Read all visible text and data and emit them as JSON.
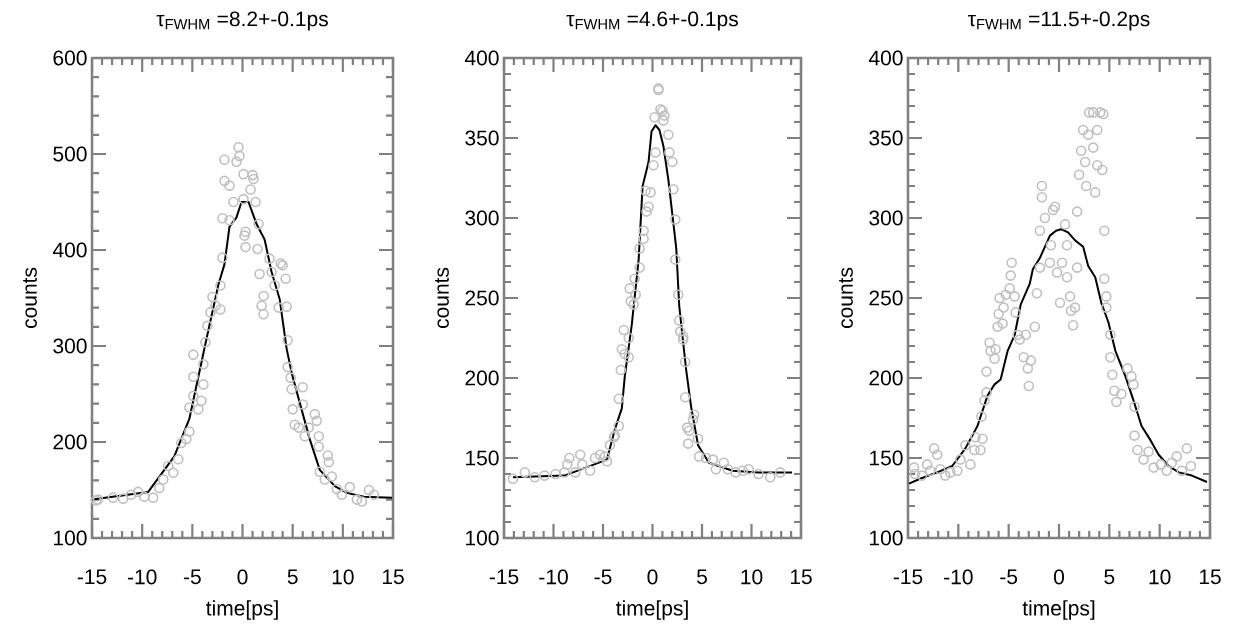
{
  "chart_data": [
    {
      "type": "scatter",
      "title": "τ$_{FWHM}$ =8.2+-0.1ps",
      "xlabel": "time[ps]",
      "ylabel": "counts",
      "xlim": [
        -15,
        15
      ],
      "ylim": [
        100,
        600
      ],
      "xticks": [
        -15,
        -10,
        -5,
        0,
        5,
        10,
        15
      ],
      "yticks": [
        100,
        200,
        300,
        400,
        500,
        600
      ],
      "series": [
        {
          "marker": "circle",
          "color": "#c0c0c0",
          "x": [
            -14.6,
            -14.4,
            -12.9,
            -11.9,
            -11.1,
            -10.4,
            -9.8,
            -8.9,
            -8.3,
            -7.9,
            -7.4,
            -6.9,
            -6.4,
            -6.1,
            -5.6,
            -5.3,
            -5.3,
            -4.9,
            -4.9,
            -4.9,
            -4.4,
            -4.1,
            -3.9,
            -3.9,
            -3.7,
            -3.5,
            -3.2,
            -3.0,
            -2.7,
            -2.2,
            -2.2,
            -2.0,
            -2.0,
            -1.3,
            -1.8,
            -1.8,
            -1.3,
            -0.9,
            -0.6,
            -0.4,
            -0.3,
            0.1,
            0.1,
            0.2,
            0.3,
            0.3,
            0.8,
            1.0,
            1.1,
            1.3,
            1.5,
            1.6,
            2.1,
            1.9,
            2.1,
            1.7,
            2.7,
            2.9,
            3.2,
            3.8,
            4.0,
            4.3,
            3.6,
            4.4,
            4.5,
            4.5,
            4.8,
            4.9,
            5.0,
            5.2,
            5.6,
            6.0,
            6.0,
            6.2,
            6.6,
            7.2,
            7.4,
            7.6,
            7.6,
            8.5,
            8.6,
            7.7,
            8.2,
            8.9,
            9.4,
            9.9,
            10.7,
            11.4,
            11.9,
            12.6,
            13.1
          ],
          "values": [
            139,
            140,
            142,
            141,
            145,
            148,
            143,
            142,
            152,
            161,
            175,
            168,
            182,
            199,
            203,
            211,
            236,
            248,
            268,
            291,
            234,
            243,
            260,
            281,
            304,
            321,
            335,
            351,
            342,
            338,
            363,
            392,
            433,
            431,
            494,
            472,
            467,
            450,
            492,
            507,
            498,
            479,
            453,
            415,
            419,
            403,
            463,
            478,
            474,
            450,
            401,
            427,
            352,
            342,
            333,
            375,
            391,
            377,
            363,
            386,
            384,
            370,
            340,
            341,
            306,
            278,
            267,
            255,
            234,
            218,
            215,
            257,
            239,
            206,
            215,
            229,
            222,
            206,
            195,
            186,
            179,
            169,
            161,
            164,
            151,
            145,
            153,
            140,
            138,
            150,
            145
          ]
        },
        {
          "type": "line",
          "marker": "none",
          "line_style": "solid",
          "color": "#000000",
          "x": [
            -15,
            -9.4,
            -6.8,
            -5.3,
            -3.6,
            -2.4,
            -1.8,
            -1.3,
            -0.6,
            -0.1,
            0.6,
            1.4,
            2.2,
            2.9,
            3.7,
            4.4,
            4.9,
            5.7,
            6.7,
            7.7,
            9.2,
            10.4,
            12.1,
            14.9
          ],
          "values": [
            140,
            148,
            185,
            224,
            307,
            364,
            385,
            424,
            434,
            450,
            450,
            427,
            411,
            377,
            349,
            297,
            272,
            241,
            203,
            171,
            154,
            147,
            143,
            142
          ]
        }
      ]
    },
    {
      "type": "scatter",
      "title": "τ$_{FWHM}$ =4.6+-0.1ps",
      "xlabel": "time[ps]",
      "ylabel": "counts",
      "xlim": [
        -15,
        15
      ],
      "ylim": [
        100,
        400
      ],
      "xticks": [
        -15,
        -10,
        -5,
        0,
        5,
        10,
        15
      ],
      "yticks": [
        100,
        150,
        200,
        250,
        300,
        350,
        400
      ],
      "series": [
        {
          "marker": "circle",
          "color": "#c0c0c0",
          "x": [
            -14.1,
            -12.9,
            -11.9,
            -10.9,
            -9.8,
            -8.9,
            -8.4,
            -8.6,
            -7.8,
            -7.3,
            -7.1,
            -6.3,
            -5.8,
            -5.3,
            -4.8,
            -4.6,
            -4.3,
            -3.9,
            -3.8,
            -3.4,
            -3.4,
            -3.2,
            -3.1,
            -2.9,
            -2.8,
            -2.4,
            -2.4,
            -2.3,
            -2.2,
            -1.9,
            -1.7,
            -1.8,
            -1.3,
            -1.3,
            -0.9,
            -0.9,
            -0.6,
            -0.4,
            -0.7,
            -0.2,
            0.1,
            0.3,
            0.2,
            0.6,
            0.6,
            0.8,
            1.0,
            1.2,
            1.1,
            1.6,
            1.7,
            2.0,
            2.1,
            2.3,
            2.3,
            2.6,
            2.7,
            2.8,
            3.1,
            3.1,
            3.3,
            3.3,
            4.2,
            4.1,
            3.5,
            3.7,
            3.6,
            4.6,
            4.7,
            5.4,
            6.1,
            6.4,
            7.2,
            7.6,
            8.4,
            9.1,
            9.7,
            10.7,
            11.9,
            12.9
          ],
          "values": [
            137,
            141,
            138,
            139,
            140,
            141,
            150,
            146,
            141,
            152,
            146,
            142,
            150,
            152,
            151,
            148,
            158,
            163,
            164,
            170,
            187,
            205,
            218,
            230,
            215,
            213,
            225,
            256,
            248,
            246,
            252,
            262,
            269,
            281,
            287,
            292,
            304,
            307,
            317,
            316,
            333,
            341,
            363,
            381,
            380,
            368,
            367,
            364,
            361,
            352,
            341,
            335,
            318,
            299,
            274,
            252,
            236,
            229,
            226,
            224,
            210,
            188,
            177,
            174,
            169,
            167,
            159,
            162,
            151,
            150,
            149,
            143,
            147,
            143,
            141,
            142,
            143,
            140,
            138,
            141
          ]
        },
        {
          "type": "line",
          "marker": "none",
          "line_style": "solid",
          "color": "#000000",
          "x": [
            -14.1,
            -8.9,
            -4.6,
            -3.8,
            -3.1,
            -2.8,
            -2.1,
            -1.4,
            -1.0,
            -0.4,
            -0.1,
            0.3,
            0.7,
            1.1,
            1.6,
            2.4,
            2.7,
            3.4,
            3.9,
            4.6,
            5.7,
            8.1,
            10.7,
            14.1
          ],
          "values": [
            138,
            139,
            149,
            168,
            181,
            201,
            233,
            274,
            320,
            335,
            354,
            358,
            355,
            345,
            324,
            281,
            245,
            205,
            182,
            158,
            147,
            142,
            141,
            141
          ]
        }
      ]
    },
    {
      "type": "scatter",
      "title": "τ$_{FWHM}$ =11.5+-0.2ps",
      "xlabel": "time[ps]",
      "ylabel": "counts",
      "xlim": [
        -15,
        15
      ],
      "ylim": [
        100,
        400
      ],
      "xticks": [
        -15,
        -10,
        -5,
        0,
        5,
        10,
        15
      ],
      "yticks": [
        100,
        150,
        200,
        250,
        300,
        350,
        400
      ],
      "series": [
        {
          "marker": "circle",
          "color": "#c0c0c0",
          "x": [
            -14.4,
            -14.3,
            -13.6,
            -13.1,
            -12.8,
            -12.4,
            -12.1,
            -11.8,
            -11.3,
            -10.8,
            -10.1,
            -9.8,
            -9.3,
            -8.8,
            -8.4,
            -8.3,
            -7.8,
            -7.6,
            -7.7,
            -7.4,
            -7.2,
            -7.2,
            -6.9,
            -6.8,
            -6.4,
            -6.3,
            -6.1,
            -6.0,
            -5.9,
            -5.6,
            -5.5,
            -5.3,
            -4.9,
            -4.8,
            -4.7,
            -4.4,
            -4.3,
            -4.1,
            -3.9,
            -3.5,
            -3.3,
            -3.1,
            -2.8,
            -3.0,
            -2.4,
            -2.2,
            -1.9,
            -1.9,
            -1.7,
            -1.7,
            -1.4,
            -0.9,
            -0.8,
            -0.6,
            -0.4,
            -0.2,
            0.1,
            0.3,
            0.6,
            0.8,
            0.8,
            1.1,
            1.2,
            1.4,
            1.6,
            1.8,
            1.8,
            2.0,
            2.2,
            2.4,
            2.6,
            2.7,
            2.9,
            3.0,
            3.4,
            3.4,
            3.6,
            3.8,
            3.8,
            4.1,
            4.4,
            4.3,
            4.5,
            4.5,
            4.7,
            4.7,
            5.1,
            5.1,
            5.3,
            5.5,
            5.7,
            6.2,
            6.8,
            7.2,
            7.4,
            7.5,
            7.5,
            7.8,
            8.4,
            8.9,
            9.4,
            10.1,
            10.7,
            11.2,
            11.7,
            12.2,
            12.7,
            13.1
          ],
          "values": [
            144,
            140,
            139,
            146,
            142,
            156,
            152,
            143,
            139,
            141,
            142,
            149,
            158,
            146,
            155,
            163,
            155,
            162,
            176,
            186,
            191,
            204,
            222,
            217,
            212,
            218,
            232,
            240,
            250,
            234,
            244,
            252,
            256,
            264,
            272,
            251,
            241,
            227,
            224,
            213,
            227,
            206,
            211,
            195,
            232,
            253,
            269,
            292,
            313,
            320,
            300,
            272,
            283,
            305,
            307,
            266,
            247,
            272,
            296,
            283,
            263,
            251,
            242,
            233,
            244,
            304,
            269,
            327,
            342,
            355,
            335,
            320,
            352,
            366,
            366,
            344,
            316,
            355,
            333,
            366,
            365,
            330,
            292,
            262,
            251,
            244,
            227,
            213,
            202,
            192,
            185,
            190,
            206,
            201,
            196,
            182,
            164,
            155,
            149,
            154,
            144,
            146,
            142,
            147,
            151,
            142,
            156,
            145
          ]
        },
        {
          "type": "line",
          "marker": "none",
          "line_style": "solid",
          "color": "#000000",
          "x": [
            -14.9,
            -13.8,
            -12.1,
            -10.6,
            -9.3,
            -8.1,
            -7.1,
            -6.4,
            -5.8,
            -5.1,
            -4.4,
            -3.8,
            -2.9,
            -2.6,
            -1.9,
            -0.9,
            -0.3,
            0.2,
            0.9,
            1.6,
            2.4,
            2.9,
            3.6,
            4.2,
            4.9,
            5.6,
            6.6,
            7.4,
            8.2,
            9.1,
            9.9,
            10.9,
            11.9,
            13.2,
            14.7
          ],
          "values": [
            134,
            137,
            141,
            145,
            156,
            170,
            189,
            196,
            199,
            217,
            227,
            246,
            259,
            268,
            275,
            289,
            292,
            293,
            291,
            286,
            282,
            270,
            263,
            247,
            235,
            217,
            201,
            186,
            170,
            161,
            152,
            145,
            141,
            139,
            135
          ]
        }
      ]
    }
  ]
}
